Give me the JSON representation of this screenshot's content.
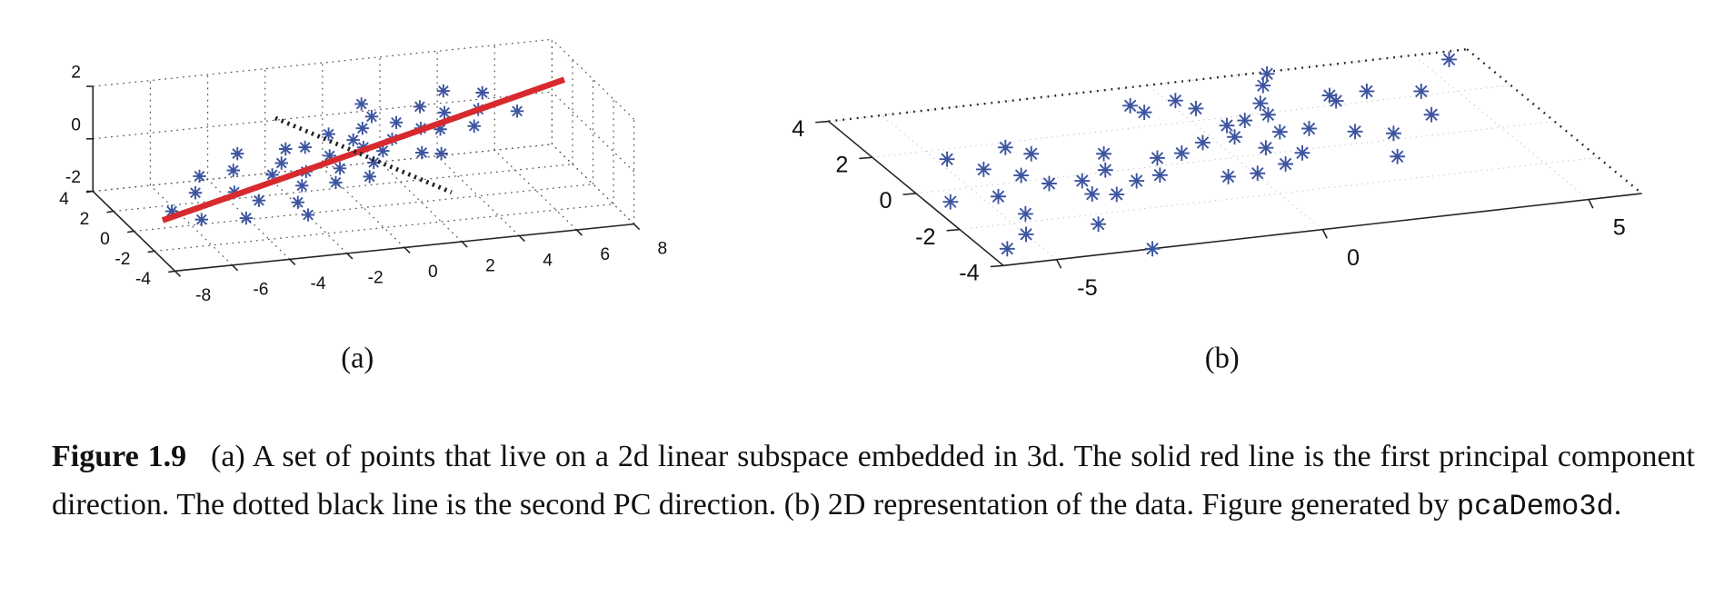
{
  "chart_data": [
    {
      "type": "scatter3d",
      "panel_label": "(a)",
      "color": "#3d55a0",
      "marker": "*",
      "x": [
        -6,
        -5.5,
        -5,
        -4.8,
        -4.5,
        -4,
        -4,
        -3.5,
        -3,
        -3,
        -2.5,
        -2.5,
        -2,
        -2,
        -1.5,
        -1.5,
        -1,
        -1,
        -0.5,
        -0.5,
        0,
        0,
        0,
        0.5,
        0.5,
        1,
        1,
        1.5,
        1.5,
        2,
        2,
        2.5,
        2.5,
        3,
        3.5,
        3.5,
        4,
        4.5,
        5,
        -6.5,
        -3,
        1
      ],
      "y": [
        -1,
        1,
        2,
        -2,
        0,
        1.5,
        -1,
        2.5,
        0.5,
        -2,
        1,
        -1,
        2,
        0,
        -1.5,
        1.5,
        0.5,
        -0.5,
        2,
        -2,
        1,
        -1,
        0,
        1.5,
        -0.5,
        0,
        2,
        -1.5,
        1,
        0,
        -2,
        1.5,
        -0.5,
        0.5,
        -1,
        2,
        0,
        1,
        -1,
        0.5,
        -3,
        3
      ],
      "z": [
        -1.4,
        -1.2,
        -1,
        -1.1,
        -0.9,
        -0.7,
        -0.9,
        -0.5,
        -0.6,
        -0.7,
        -0.4,
        -0.5,
        -0.3,
        -0.4,
        -0.3,
        -0.1,
        -0.1,
        -0.2,
        0.1,
        0,
        0.2,
        0.1,
        0.3,
        0.4,
        0.3,
        0.5,
        0.6,
        0.5,
        0.7,
        0.8,
        0.6,
        1,
        0.9,
        1.1,
        1.1,
        1.3,
        1.3,
        1.5,
        1.5,
        -1.6,
        -0.8,
        0.7
      ],
      "principal_component_1": {
        "x": [
          -7,
          7
        ],
        "y": [
          0,
          0
        ],
        "z": [
          -1.7,
          2.1
        ],
        "color": "#d62a2f",
        "style": "solid"
      },
      "principal_component_2": {
        "x": [
          -2,
          2
        ],
        "y": [
          3,
          -3
        ],
        "z": [
          0.5,
          -0.5
        ],
        "color": "#222222",
        "style": "dotted"
      },
      "xlim": [
        -8,
        8
      ],
      "ylim": [
        -4,
        4
      ],
      "zlim": [
        -2,
        2
      ],
      "xticks": [
        -8,
        -6,
        -4,
        -2,
        0,
        2,
        4,
        6,
        8
      ],
      "yticks": [
        -4,
        -2,
        0,
        2,
        4
      ],
      "zticks": [
        -2,
        0,
        2
      ],
      "grid": true
    },
    {
      "type": "scatter3d-floor",
      "panel_label": "(b)",
      "color": "#3d55a0",
      "marker": "*",
      "x": [
        5.5,
        2.2,
        1.5,
        1.4,
        -0.7,
        -0.6,
        0.15,
        0.33,
        2.8,
        3.5,
        4.4,
        4.1,
        3.1,
        2.5,
        2.7,
        1.8,
        1.25,
        0.9,
        0.5,
        -0.24,
        0.4,
        0.7,
        0.7,
        0.05,
        -0.5,
        1.2,
        -0.8,
        -1.3,
        -2.1,
        -1.6,
        -2.1,
        -2.4,
        -3,
        -2.7,
        -3.1,
        -3.6,
        -3.3,
        -3.6,
        -3.9,
        -3.6,
        -4.4,
        -4.8,
        -5.6,
        -4.7,
        -4.6,
        -5,
        -5.6,
        -3.2,
        2.8,
        1.9
      ],
      "y": [
        3.6,
        3.9,
        2.5,
        1.9,
        3.1,
        2.7,
        3.1,
        2.6,
        2.5,
        2.5,
        2.2,
        1,
        0.3,
        0.6,
        -0.85,
        1,
        1,
        1.75,
        1.6,
        0.9,
        1,
        0.3,
        -0.6,
        -0.9,
        -0.9,
        -0.15,
        0.5,
        0.4,
        -0.6,
        -0.45,
        0.9,
        0.1,
        -0.3,
        -1.15,
        -1,
        -2.5,
        1.3,
        -0.25,
        0.3,
        1.75,
        0.8,
        1.5,
        -0.6,
        -0.6,
        -1.6,
        -2.6,
        -3.2,
        -4,
        2.2,
        3.35
      ],
      "xlim": [
        -6,
        6
      ],
      "ylim": [
        -4,
        4
      ],
      "xticks": [
        -5,
        0,
        5
      ],
      "yticks": [
        -4,
        -2,
        0,
        2,
        4
      ],
      "grid": true
    }
  ],
  "caption": {
    "label": "Figure 1.9",
    "text": "(a) A set of points that live on a 2d linear subspace embedded in 3d. The solid red line is the first principal component direction. The dotted black line is the second PC direction. (b) 2D representation of the data. Figure generated by ",
    "code": "pcaDemo3d",
    "end": "."
  }
}
